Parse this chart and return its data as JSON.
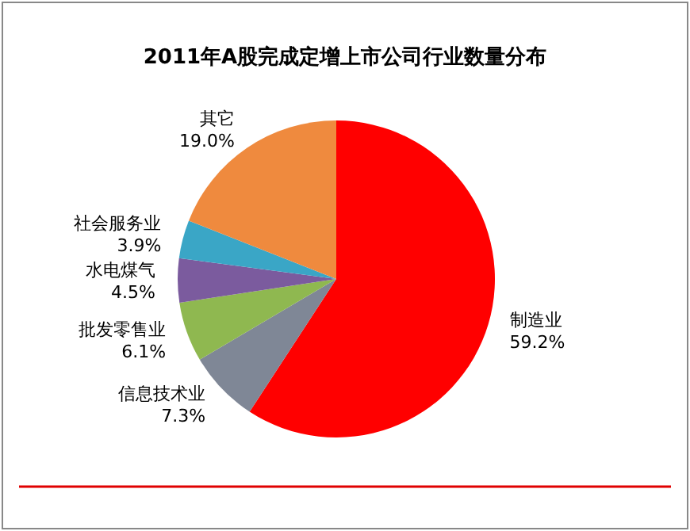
{
  "chart_data": {
    "type": "pie",
    "title": "2011年A股完成定增上市公司行业数量分布",
    "categories": [
      "制造业",
      "信息技术业",
      "批发零售业",
      "水电煤气",
      "社会服务业",
      "其它"
    ],
    "values": [
      59.2,
      7.3,
      6.1,
      4.5,
      3.9,
      19.0
    ],
    "value_labels": [
      "59.2%",
      "7.3%",
      "6.1%",
      "4.5%",
      "3.9%",
      "19.0%"
    ],
    "colors": [
      "#ff0000",
      "#7f8796",
      "#8fb850",
      "#7b5b9e",
      "#3aa6c6",
      "#ef8a3e"
    ]
  }
}
